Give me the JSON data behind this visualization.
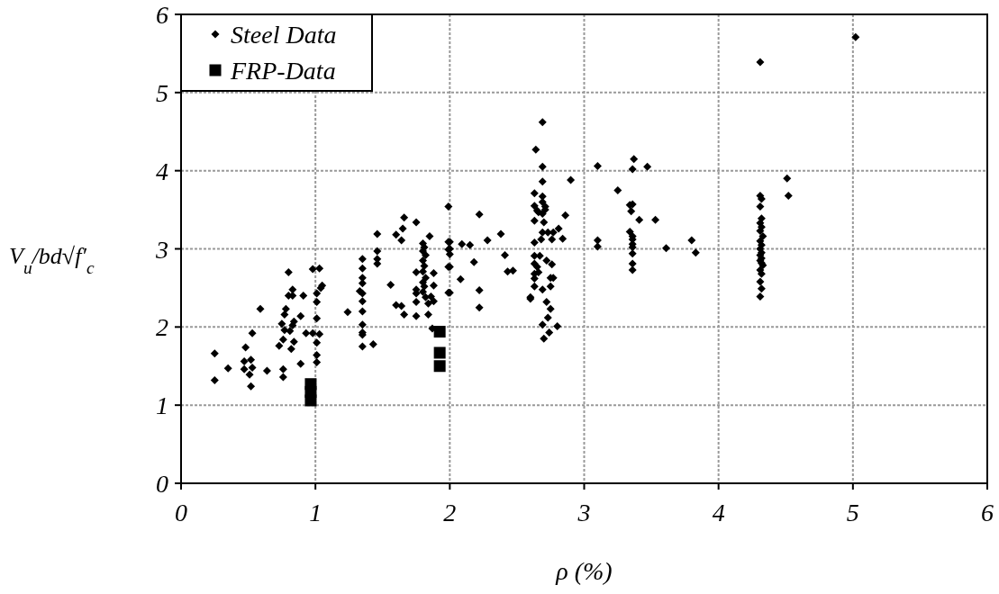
{
  "chart_data": {
    "type": "scatter",
    "xlabel": "ρ (%)",
    "ylabel": "V$_{u}$/bd√f′$_{c}$",
    "xlim": [
      0,
      6
    ],
    "ylim": [
      0,
      6
    ],
    "xticks": [
      0,
      1,
      2,
      3,
      4,
      5,
      6
    ],
    "yticks": [
      0,
      1,
      2,
      3,
      4,
      5,
      6
    ],
    "grid": true,
    "legend": "top left",
    "series": [
      {
        "name": "Steel Data",
        "color": "#000000",
        "marker": "diamond",
        "x": [
          0.25,
          0.25,
          0.35,
          0.48,
          0.47,
          0.52,
          0.47,
          0.53,
          0.51,
          0.52,
          0.53,
          0.59,
          0.64,
          0.76,
          0.76,
          0.73,
          0.76,
          0.82,
          0.84,
          0.89,
          0.75,
          0.77,
          0.81,
          0.83,
          0.84,
          0.78,
          0.77,
          0.89,
          0.8,
          0.83,
          0.83,
          0.8,
          0.91,
          0.93,
          0.98,
          1.03,
          0.98,
          1.03,
          1.01,
          1.01,
          1.01,
          1.01,
          1.01,
          1.01,
          1.04,
          1.05,
          1.24,
          1.35,
          1.35,
          1.35,
          1.35,
          1.33,
          1.35,
          1.35,
          1.35,
          1.35,
          1.35,
          1.35,
          1.35,
          1.43,
          1.46,
          1.46,
          1.46,
          1.46,
          1.56,
          1.6,
          1.64,
          1.66,
          1.75,
          1.84,
          1.6,
          1.64,
          1.65,
          1.66,
          1.75,
          1.85,
          1.8,
          1.81,
          1.8,
          1.82,
          1.8,
          1.81,
          1.8,
          1.82,
          1.8,
          1.81,
          1.8,
          1.82,
          1.75,
          1.75,
          1.75,
          1.75,
          1.88,
          1.88,
          1.88,
          1.84,
          1.86,
          1.87,
          1.99,
          1.99,
          1.99,
          1.99,
          1.99,
          2.69,
          2.64,
          2.69,
          2.69,
          2.9,
          2.22,
          2.63,
          2.69,
          2.69,
          2.63,
          2.65,
          2.66,
          2.71,
          2.71,
          2.69,
          2.86,
          2.63,
          2.7,
          2.81,
          2.69,
          2.73,
          2.77,
          2.84,
          2.68,
          2.76,
          2.63,
          2.0,
          2.0,
          2.0,
          2.0,
          2.0,
          2.09,
          2.15,
          2.28,
          2.38,
          2.41,
          2.18,
          2.08,
          2.22,
          2.22,
          2.43,
          2.47,
          2.6,
          2.6,
          2.63,
          2.67,
          2.72,
          2.76,
          2.63,
          2.65,
          2.63,
          2.63,
          2.66,
          2.63,
          2.69,
          2.75,
          2.77,
          2.75,
          2.72,
          2.75,
          2.73,
          2.69,
          2.8,
          2.74,
          2.7,
          3.1,
          3.37,
          3.36,
          3.47,
          3.25,
          3.34,
          3.36,
          3.35,
          3.41,
          3.53,
          3.34,
          3.36,
          3.36,
          3.36,
          3.36,
          3.36,
          3.36,
          3.36,
          3.1,
          3.1,
          3.61,
          3.8,
          3.83,
          5.02,
          4.31,
          4.51,
          4.52,
          4.31,
          4.32,
          4.31,
          4.32,
          4.31,
          4.32,
          4.31,
          4.33,
          4.31,
          4.32,
          4.31,
          4.32,
          4.31,
          4.32,
          4.31,
          4.32,
          4.33,
          4.31,
          4.32,
          4.31,
          4.32,
          4.31
        ],
        "values": [
          1.66,
          1.32,
          1.47,
          1.74,
          1.56,
          1.58,
          1.46,
          1.48,
          1.39,
          1.24,
          1.92,
          2.23,
          1.44,
          1.46,
          1.36,
          1.76,
          1.84,
          1.72,
          1.81,
          1.53,
          2.04,
          1.96,
          1.95,
          2.02,
          2.07,
          2.23,
          2.16,
          2.14,
          2.4,
          2.4,
          2.48,
          2.7,
          2.4,
          1.92,
          1.92,
          1.91,
          2.74,
          2.75,
          2.43,
          2.32,
          2.11,
          1.8,
          1.64,
          1.55,
          2.5,
          2.53,
          2.19,
          2.87,
          2.75,
          2.63,
          2.56,
          2.46,
          2.43,
          2.33,
          2.2,
          2.03,
          1.93,
          1.9,
          1.75,
          1.78,
          3.19,
          2.97,
          2.87,
          2.81,
          2.54,
          2.28,
          2.27,
          2.16,
          2.14,
          2.16,
          3.18,
          3.11,
          3.26,
          3.4,
          3.34,
          3.16,
          3.07,
          3.02,
          2.97,
          2.92,
          2.85,
          2.78,
          2.71,
          2.63,
          2.57,
          2.52,
          2.45,
          2.38,
          2.7,
          2.48,
          2.43,
          2.32,
          2.69,
          2.53,
          2.33,
          2.3,
          2.39,
          1.98,
          3.54,
          3.09,
          2.99,
          2.77,
          2.44,
          4.62,
          4.27,
          4.05,
          3.86,
          3.88,
          3.44,
          3.71,
          3.67,
          3.6,
          3.55,
          3.49,
          3.47,
          3.54,
          3.5,
          3.45,
          3.43,
          3.36,
          3.34,
          3.26,
          3.21,
          3.21,
          3.21,
          3.13,
          3.12,
          3.12,
          3.08,
          3.09,
          3.0,
          2.93,
          2.77,
          2.44,
          3.06,
          3.05,
          3.11,
          3.19,
          2.92,
          2.83,
          2.61,
          2.47,
          2.25,
          2.71,
          2.72,
          2.38,
          2.36,
          2.91,
          2.91,
          2.85,
          2.8,
          2.81,
          2.77,
          2.68,
          2.62,
          2.7,
          2.52,
          2.48,
          2.63,
          2.63,
          2.52,
          2.32,
          2.23,
          2.12,
          2.03,
          2.01,
          1.93,
          1.85,
          4.06,
          4.15,
          4.02,
          4.05,
          3.75,
          3.56,
          3.57,
          3.48,
          3.37,
          3.37,
          3.22,
          3.16,
          3.12,
          3.06,
          3.02,
          2.94,
          2.81,
          2.73,
          3.11,
          3.03,
          3.01,
          3.11,
          2.95,
          5.71,
          5.39,
          3.9,
          3.68,
          3.68,
          3.64,
          3.54,
          3.39,
          3.33,
          3.28,
          3.23,
          3.16,
          3.1,
          3.05,
          3.0,
          2.95,
          2.92,
          2.88,
          2.85,
          2.82,
          2.79,
          2.73,
          2.68,
          2.58,
          2.49,
          2.39
        ]
      },
      {
        "name": "FRP-Data",
        "color": "#000000",
        "marker": "square",
        "x": [
          0.965,
          0.965,
          0.965,
          1.925,
          1.925,
          1.925
        ],
        "values": [
          1.27,
          1.17,
          1.06,
          1.94,
          1.67,
          1.5
        ]
      }
    ]
  }
}
